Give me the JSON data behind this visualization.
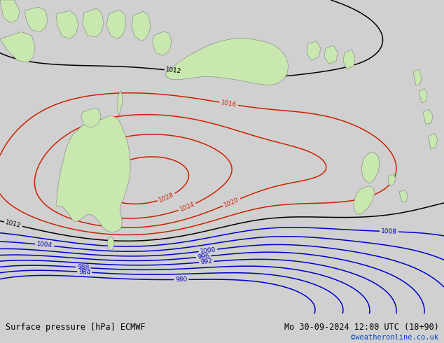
{
  "title_left": "Surface pressure [hPa] ECMWF",
  "title_right": "Mo 30-09-2024 12:00 UTC (18+90)",
  "credit": "©weatheronline.co.uk",
  "ocean_color": "#b0c0d8",
  "land_color": "#c8e8b0",
  "land_edge_color": "#909090",
  "bottom_bar_color": "#d0d0d0",
  "font_color": "#000000",
  "credit_color": "#0044cc",
  "contour_low_color": "#0000cc",
  "contour_mid_color": "#000000",
  "contour_high_color": "#cc2200"
}
